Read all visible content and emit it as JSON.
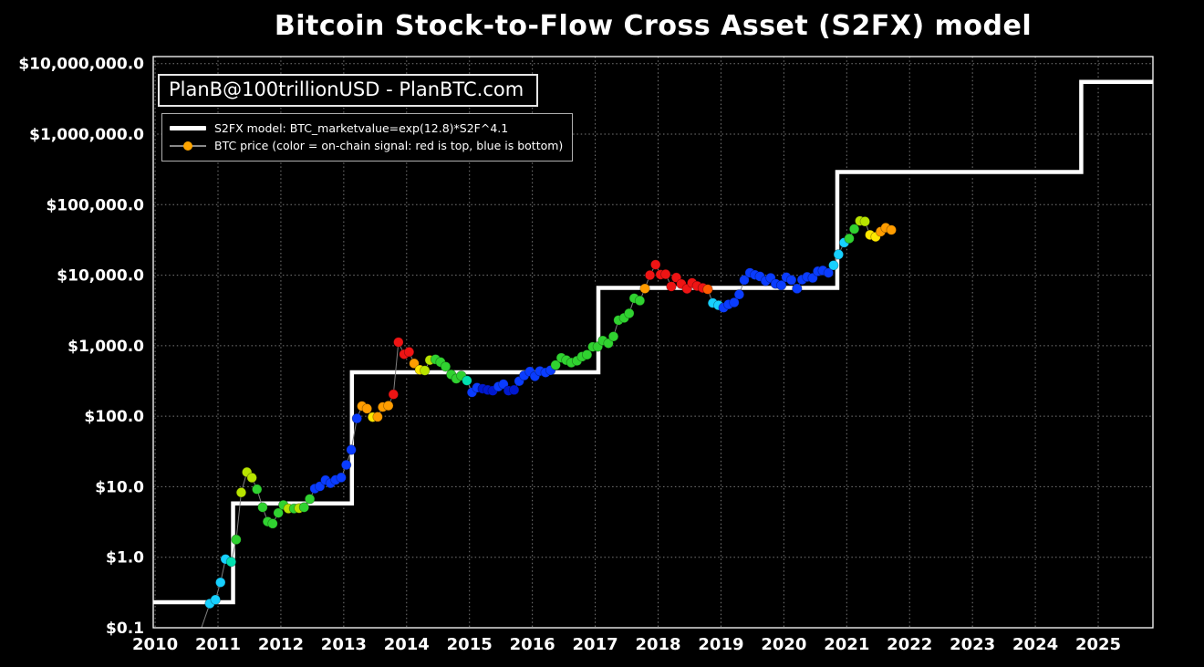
{
  "chart": {
    "title": "Bitcoin Stock-to-Flow Cross Asset (S2FX) model",
    "annotation": "PlanB@100trillionUSD  -  PlanBTC.com",
    "legend": [
      {
        "label": "S2FX model: BTC_marketvalue=exp(12.8)*S2F^4.1"
      },
      {
        "label": "BTC price (color = on-chain signal: red is top, blue is bottom)"
      }
    ],
    "colors": {
      "background": "#000000",
      "text": "#ffffff",
      "grid": "#909090",
      "model_line": "#ffffff",
      "price_line": "#808080",
      "legend_marker": "#ffa500"
    }
  },
  "chart_data": {
    "type": "line",
    "title": "Bitcoin Stock-to-Flow Cross Asset (S2FX) model",
    "y_scale": "log",
    "grid": true,
    "legend_position": "upper-left",
    "x_axis": {
      "range": [
        2009.97,
        2025.87
      ],
      "tick_values": [
        2010,
        2011,
        2012,
        2013,
        2014,
        2015,
        2016,
        2017,
        2018,
        2019,
        2020,
        2021,
        2022,
        2023,
        2024,
        2025
      ],
      "tick_labels": [
        "2010",
        "2011",
        "2012",
        "2013",
        "2014",
        "2015",
        "2016",
        "2017",
        "2018",
        "2019",
        "2020",
        "2021",
        "2022",
        "2023",
        "2024",
        "2025"
      ]
    },
    "y_axis": {
      "range": [
        0.1,
        12589254
      ],
      "tick_values": [
        10000000,
        1000000,
        100000,
        10000,
        1000,
        100,
        10,
        1,
        0.1
      ],
      "tick_labels": [
        "$10,000,000.0",
        "$1,000,000.0",
        "$100,000.0",
        "$10,000.0",
        "$1,000.0",
        "$100.0",
        "$10.0",
        "$1.0",
        "$0.1"
      ]
    },
    "model_series": {
      "name": "S2FX model",
      "formula": "BTC_marketvalue=exp(12.8)*S2F^4.1",
      "color": "#ffffff",
      "steps": [
        [
          2009.97,
          0.23
        ],
        [
          2011.24,
          5.8
        ],
        [
          2013.13,
          420
        ],
        [
          2017.05,
          6600
        ],
        [
          2020.85,
          290000
        ],
        [
          2024.73,
          5500000
        ]
      ]
    },
    "price_series": {
      "name": "BTC price",
      "palette": {
        "red": "#ee1414",
        "orangered": "#ff5a00",
        "orange": "#ff9d00",
        "yellow": "#ffe800",
        "ygreen": "#b8e400",
        "green": "#30d230",
        "teal": "#00e0b0",
        "cyan": "#17d0ff",
        "blue": "#0a3cff",
        "darkblue": "#0018cf"
      },
      "points": [
        [
          2010.62,
          0.05,
          null
        ],
        [
          2010.87,
          0.22,
          "cyan"
        ],
        [
          2010.96,
          0.25,
          "cyan"
        ],
        [
          2011.04,
          0.44,
          "cyan"
        ],
        [
          2011.12,
          0.94,
          "cyan"
        ],
        [
          2011.21,
          0.86,
          "teal"
        ],
        [
          2011.29,
          1.78,
          "green"
        ],
        [
          2011.37,
          8.3,
          "ygreen"
        ],
        [
          2011.46,
          16.1,
          "ygreen"
        ],
        [
          2011.54,
          13.4,
          "ygreen"
        ],
        [
          2011.62,
          9.2,
          "green"
        ],
        [
          2011.71,
          5.1,
          "green"
        ],
        [
          2011.79,
          3.2,
          "green"
        ],
        [
          2011.87,
          3.0,
          "green"
        ],
        [
          2011.96,
          4.25,
          "green"
        ],
        [
          2012.04,
          5.5,
          "green"
        ],
        [
          2012.12,
          4.9,
          "ygreen"
        ],
        [
          2012.21,
          4.9,
          "green"
        ],
        [
          2012.29,
          4.95,
          "ygreen"
        ],
        [
          2012.37,
          5.1,
          "green"
        ],
        [
          2012.46,
          6.7,
          "green"
        ],
        [
          2012.54,
          9.4,
          "blue"
        ],
        [
          2012.62,
          10.1,
          "blue"
        ],
        [
          2012.71,
          12.4,
          "blue"
        ],
        [
          2012.79,
          11.2,
          "blue"
        ],
        [
          2012.87,
          12.5,
          "blue"
        ],
        [
          2012.96,
          13.5,
          "blue"
        ],
        [
          2013.04,
          20.4,
          "blue"
        ],
        [
          2013.12,
          33.4,
          "blue"
        ],
        [
          2013.21,
          93,
          "blue"
        ],
        [
          2013.29,
          139,
          "orange"
        ],
        [
          2013.37,
          128,
          "orange"
        ],
        [
          2013.46,
          97,
          "yellow"
        ],
        [
          2013.54,
          98,
          "orange"
        ],
        [
          2013.62,
          135,
          "orange"
        ],
        [
          2013.71,
          141,
          "orange"
        ],
        [
          2013.79,
          204,
          "red"
        ],
        [
          2013.87,
          1120,
          "red"
        ],
        [
          2013.96,
          755,
          "red"
        ],
        [
          2014.04,
          815,
          "red"
        ],
        [
          2014.12,
          560,
          "orange"
        ],
        [
          2014.21,
          455,
          "yellow"
        ],
        [
          2014.29,
          445,
          "ygreen"
        ],
        [
          2014.37,
          625,
          "ygreen"
        ],
        [
          2014.46,
          640,
          "green"
        ],
        [
          2014.54,
          585,
          "green"
        ],
        [
          2014.62,
          505,
          "green"
        ],
        [
          2014.71,
          390,
          "green"
        ],
        [
          2014.79,
          340,
          "green"
        ],
        [
          2014.87,
          375,
          "green"
        ],
        [
          2014.96,
          320,
          "teal"
        ],
        [
          2015.04,
          218,
          "blue"
        ],
        [
          2015.12,
          254,
          "blue"
        ],
        [
          2015.21,
          245,
          "darkblue"
        ],
        [
          2015.29,
          236,
          "darkblue"
        ],
        [
          2015.37,
          230,
          "darkblue"
        ],
        [
          2015.46,
          263,
          "blue"
        ],
        [
          2015.54,
          284,
          "blue"
        ],
        [
          2015.62,
          230,
          "darkblue"
        ],
        [
          2015.71,
          236,
          "darkblue"
        ],
        [
          2015.79,
          314,
          "blue"
        ],
        [
          2015.87,
          377,
          "blue"
        ],
        [
          2015.96,
          430,
          "blue"
        ],
        [
          2016.04,
          368,
          "blue"
        ],
        [
          2016.12,
          437,
          "blue"
        ],
        [
          2016.21,
          416,
          "blue"
        ],
        [
          2016.29,
          448,
          "blue"
        ],
        [
          2016.37,
          531,
          "green"
        ],
        [
          2016.46,
          673,
          "green"
        ],
        [
          2016.54,
          624,
          "green"
        ],
        [
          2016.62,
          575,
          "green"
        ],
        [
          2016.71,
          610,
          "green"
        ],
        [
          2016.79,
          700,
          "green"
        ],
        [
          2016.87,
          745,
          "green"
        ],
        [
          2016.96,
          963,
          "green"
        ],
        [
          2017.04,
          970,
          "green"
        ],
        [
          2017.12,
          1180,
          "green"
        ],
        [
          2017.21,
          1080,
          "green"
        ],
        [
          2017.29,
          1350,
          "green"
        ],
        [
          2017.37,
          2300,
          "green"
        ],
        [
          2017.46,
          2480,
          "green"
        ],
        [
          2017.54,
          2875,
          "green"
        ],
        [
          2017.62,
          4700,
          "green"
        ],
        [
          2017.71,
          4360,
          "green"
        ],
        [
          2017.79,
          6450,
          "orange"
        ],
        [
          2017.87,
          10000,
          "red"
        ],
        [
          2017.96,
          14100,
          "red"
        ],
        [
          2018.04,
          10200,
          "red"
        ],
        [
          2018.12,
          10300,
          "red"
        ],
        [
          2018.21,
          6930,
          "red"
        ],
        [
          2018.29,
          9240,
          "red"
        ],
        [
          2018.37,
          7500,
          "red"
        ],
        [
          2018.46,
          6400,
          "red"
        ],
        [
          2018.54,
          7780,
          "red"
        ],
        [
          2018.62,
          7030,
          "red"
        ],
        [
          2018.71,
          6600,
          "red"
        ],
        [
          2018.79,
          6300,
          "orangered"
        ],
        [
          2018.87,
          4030,
          "cyan"
        ],
        [
          2018.96,
          3740,
          "cyan"
        ],
        [
          2019.04,
          3460,
          "blue"
        ],
        [
          2019.12,
          3850,
          "blue"
        ],
        [
          2019.21,
          4100,
          "blue"
        ],
        [
          2019.29,
          5320,
          "blue"
        ],
        [
          2019.37,
          8550,
          "blue"
        ],
        [
          2019.46,
          10800,
          "blue"
        ],
        [
          2019.54,
          10100,
          "blue"
        ],
        [
          2019.62,
          9600,
          "blue"
        ],
        [
          2019.71,
          8300,
          "blue"
        ],
        [
          2019.79,
          9150,
          "blue"
        ],
        [
          2019.87,
          7550,
          "blue"
        ],
        [
          2019.96,
          7200,
          "blue"
        ],
        [
          2020.04,
          9350,
          "blue"
        ],
        [
          2020.12,
          8550,
          "blue"
        ],
        [
          2020.21,
          6440,
          "blue"
        ],
        [
          2020.29,
          8630,
          "blue"
        ],
        [
          2020.37,
          9450,
          "blue"
        ],
        [
          2020.46,
          9140,
          "blue"
        ],
        [
          2020.54,
          11350,
          "blue"
        ],
        [
          2020.62,
          11650,
          "blue"
        ],
        [
          2020.71,
          10780,
          "blue"
        ],
        [
          2020.79,
          13800,
          "cyan"
        ],
        [
          2020.87,
          19700,
          "cyan"
        ],
        [
          2020.96,
          29000,
          "cyan"
        ],
        [
          2021.04,
          33100,
          "green"
        ],
        [
          2021.12,
          45200,
          "green"
        ],
        [
          2021.21,
          58800,
          "ygreen"
        ],
        [
          2021.29,
          57750,
          "ygreen"
        ],
        [
          2021.37,
          37300,
          "yellow"
        ],
        [
          2021.46,
          35000,
          "yellow"
        ],
        [
          2021.54,
          41500,
          "orange"
        ],
        [
          2021.62,
          47100,
          "orange"
        ],
        [
          2021.71,
          43800,
          "orange"
        ]
      ]
    }
  }
}
